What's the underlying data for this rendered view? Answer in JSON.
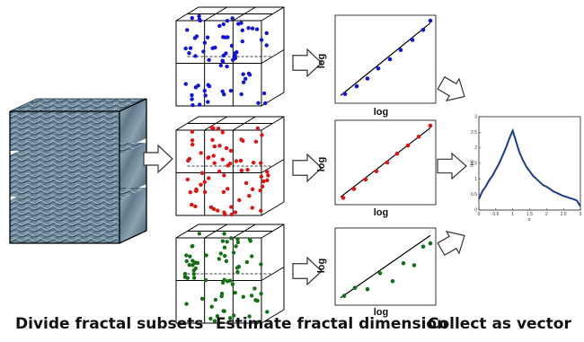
{
  "captions": {
    "divide": "Divide fractal subsets",
    "estimate": "Estimate fractal dimension",
    "collect": "Collect as vector"
  },
  "colors": {
    "blue": "#1414d8",
    "red": "#e01414",
    "green": "#157015",
    "curve": "#1c3c8c",
    "arrow_fill": "#ffffff",
    "arrow_stroke": "#333333"
  },
  "log_plots": [
    {
      "xlabel": "log",
      "ylabel": "log",
      "color": "#1414d8",
      "points": [
        [
          0.05,
          0.05
        ],
        [
          0.18,
          0.15
        ],
        [
          0.3,
          0.25
        ],
        [
          0.42,
          0.38
        ],
        [
          0.55,
          0.5
        ],
        [
          0.67,
          0.62
        ],
        [
          0.8,
          0.75
        ],
        [
          0.92,
          0.88
        ],
        [
          1.0,
          1.0
        ]
      ]
    },
    {
      "xlabel": "log",
      "ylabel": "log",
      "color": "#e01414",
      "points": [
        [
          0.03,
          0.02
        ],
        [
          0.15,
          0.14
        ],
        [
          0.28,
          0.27
        ],
        [
          0.4,
          0.38
        ],
        [
          0.52,
          0.5
        ],
        [
          0.63,
          0.62
        ],
        [
          0.75,
          0.73
        ],
        [
          0.87,
          0.85
        ],
        [
          1.0,
          1.0
        ]
      ]
    },
    {
      "xlabel": "log",
      "ylabel": "log",
      "color": "#157015",
      "points": [
        [
          0.04,
          0.06
        ],
        [
          0.16,
          0.18
        ],
        [
          0.3,
          0.16
        ],
        [
          0.44,
          0.4
        ],
        [
          0.58,
          0.28
        ],
        [
          0.7,
          0.55
        ],
        [
          0.82,
          0.52
        ],
        [
          0.92,
          0.8
        ],
        [
          1.0,
          0.85
        ]
      ]
    }
  ],
  "chart_data": {
    "type": "line",
    "title": "",
    "xlabel": "α",
    "ylabel": "f(α)",
    "xlim": [
      0,
      3
    ],
    "ylim": [
      0,
      3
    ],
    "xticks": [
      "0",
      "0.5",
      "1",
      "1.5",
      "2",
      "2.5",
      "3"
    ],
    "yticks": [
      "0",
      "0.5",
      "1",
      "1.5",
      "2",
      "2.5",
      "3"
    ],
    "x": [
      0,
      0.1,
      0.2,
      0.3,
      0.4,
      0.5,
      0.6,
      0.7,
      0.8,
      0.9,
      1.0,
      1.1,
      1.2,
      1.3,
      1.4,
      1.5,
      1.6,
      1.7,
      1.8,
      1.9,
      2.0,
      2.1,
      2.2,
      2.3,
      2.4,
      2.5,
      2.6,
      2.7,
      2.8,
      2.9,
      3.0
    ],
    "values": [
      0.35,
      0.6,
      0.75,
      0.95,
      1.1,
      1.3,
      1.5,
      1.75,
      2.0,
      2.3,
      2.55,
      2.2,
      1.85,
      1.6,
      1.4,
      1.25,
      1.1,
      1.0,
      0.9,
      0.8,
      0.75,
      0.68,
      0.6,
      0.55,
      0.5,
      0.45,
      0.42,
      0.38,
      0.35,
      0.3,
      0.12
    ]
  }
}
